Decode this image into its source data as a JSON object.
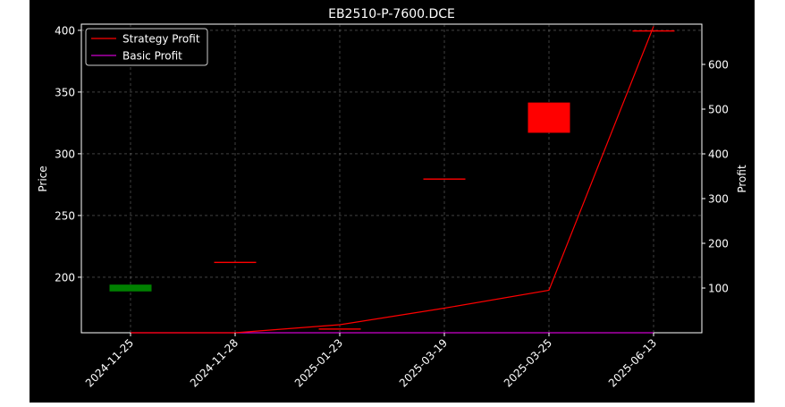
{
  "chart_data": {
    "type": "candlestick",
    "title": "EB2510-P-7600.DCE",
    "xlabel": "",
    "ylabel_left": "Price",
    "ylabel_right": "Profit",
    "categories": [
      "2024-11-25",
      "2024-11-28",
      "2025-01-23",
      "2025-03-19",
      "2025-03-25",
      "2025-06-13"
    ],
    "ylim_left": [
      155,
      405
    ],
    "yticks_left": [
      200,
      250,
      300,
      350,
      400
    ],
    "ylim_right": [
      0,
      690
    ],
    "yticks_right": [
      100,
      200,
      300,
      400,
      500,
      600
    ],
    "grid": true,
    "legend_position": "top-left",
    "candles": [
      {
        "date": "2024-11-25",
        "open": 194,
        "close": 188.5,
        "direction": "down"
      },
      {
        "date": "2024-11-28",
        "open": 212.5,
        "close": 212.5,
        "direction": "up"
      },
      {
        "date": "2025-01-23",
        "open": 158.5,
        "close": 158.5,
        "direction": "up"
      },
      {
        "date": "2025-03-19",
        "open": 280,
        "close": 280,
        "direction": "up"
      },
      {
        "date": "2025-03-25",
        "open": 317,
        "close": 341.5,
        "direction": "up"
      },
      {
        "date": "2025-06-13",
        "open": 400,
        "close": 400,
        "direction": "up"
      }
    ],
    "series": [
      {
        "name": "Strategy Profit",
        "color": "#ff0000",
        "values": [
          0,
          0,
          18,
          55,
          95,
          685
        ]
      },
      {
        "name": "Basic Profit",
        "color": "#cc00cc",
        "values": [
          0,
          0,
          0,
          0,
          0,
          0
        ]
      }
    ],
    "colors": {
      "up": "#ff0000",
      "down": "#008000",
      "background": "#000000",
      "foreground": "#ffffff"
    }
  }
}
